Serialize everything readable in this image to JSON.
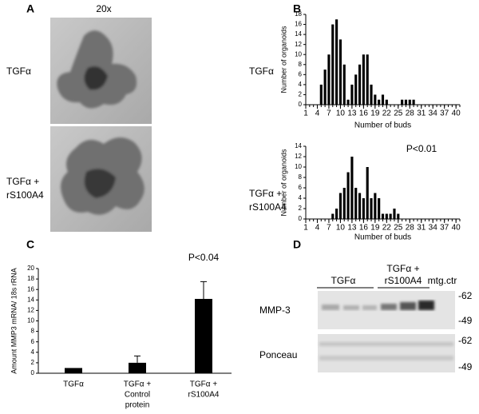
{
  "panels": {
    "a": {
      "label": "A",
      "magnification": "20x",
      "rows": [
        [
          "TGFα"
        ],
        [
          "TGFα +",
          "rS100A4"
        ]
      ]
    },
    "b": {
      "label": "B",
      "rows": [
        [
          "TGFα"
        ],
        [
          "TGFα +",
          "rS100A4"
        ]
      ]
    },
    "c": {
      "label": "C"
    },
    "d": {
      "label": "D",
      "groups": [
        [
          "TGFα"
        ],
        [
          "TGFα +",
          "rS100A4"
        ],
        [
          "mtg.ctr"
        ]
      ],
      "blots": [
        {
          "name": "MMP-3",
          "markers": [
            "-62",
            "-49"
          ]
        },
        {
          "name": "Ponceau",
          "markers": [
            "-62",
            "-49"
          ]
        }
      ]
    }
  },
  "chart_data": [
    {
      "type": "bar",
      "x_label": "Number of buds",
      "y_label": "Number of organoids",
      "x": [
        5,
        6,
        7,
        8,
        9,
        10,
        11,
        12,
        13,
        14,
        15,
        16,
        17,
        18,
        19,
        20,
        21,
        22,
        26,
        27,
        28,
        29
      ],
      "values": [
        4,
        7,
        10,
        16,
        17,
        13,
        8,
        1,
        4,
        6,
        8,
        10,
        10,
        4,
        2,
        1,
        2,
        1,
        1,
        1,
        1,
        1
      ],
      "color": "#000000",
      "xlim": [
        1,
        41
      ],
      "ylim": [
        0,
        18
      ],
      "xticks": [
        1,
        4,
        7,
        10,
        13,
        16,
        19,
        22,
        25,
        28,
        31,
        34,
        37,
        40
      ],
      "xticks_minor": [
        1,
        2,
        3,
        4,
        5,
        6,
        7,
        8,
        9,
        10,
        11,
        12,
        13,
        14,
        15,
        16,
        17,
        18,
        19,
        20,
        21,
        22,
        23,
        24,
        25,
        26,
        27,
        28,
        29,
        30,
        31,
        32,
        33,
        34,
        35,
        36,
        37,
        38,
        39,
        40,
        41
      ],
      "yticks": [
        0,
        2,
        4,
        6,
        8,
        10,
        12,
        14,
        16,
        18
      ]
    },
    {
      "type": "bar",
      "x_label": "Number of buds",
      "y_label": "Number of organoids",
      "annotation": "P<0.01",
      "x": [
        8,
        9,
        10,
        11,
        12,
        13,
        14,
        15,
        16,
        17,
        18,
        19,
        20,
        21,
        22,
        23,
        24,
        25
      ],
      "values": [
        1,
        2,
        5,
        6,
        9,
        12,
        6,
        5,
        4,
        10,
        4,
        5,
        4,
        1,
        1,
        1,
        2,
        1
      ],
      "color": "#000000",
      "xlim": [
        1,
        41
      ],
      "ylim": [
        0,
        14
      ],
      "xticks": [
        1,
        4,
        7,
        10,
        13,
        16,
        19,
        22,
        25,
        28,
        31,
        34,
        37,
        40
      ],
      "xticks_minor": [
        1,
        2,
        3,
        4,
        5,
        6,
        7,
        8,
        9,
        10,
        11,
        12,
        13,
        14,
        15,
        16,
        17,
        18,
        19,
        20,
        21,
        22,
        23,
        24,
        25,
        26,
        27,
        28,
        29,
        30,
        31,
        32,
        33,
        34,
        35,
        36,
        37,
        38,
        39,
        40,
        41
      ],
      "yticks": [
        0,
        2,
        4,
        6,
        8,
        10,
        12,
        14
      ]
    },
    {
      "type": "bar",
      "y_label": "Amount MMP3 mRNA/ 18s rRNA",
      "annotation": "P<0.04",
      "categories": [
        [
          "TGFα"
        ],
        [
          "TGFα +",
          "Control",
          "protein"
        ],
        [
          "TGFα +",
          "rS100A4"
        ]
      ],
      "values": [
        1,
        2,
        14.2
      ],
      "errors": [
        null,
        1.3,
        3.3
      ],
      "color": "#000000",
      "ylim": [
        0,
        20
      ],
      "yticks": [
        0,
        2,
        4,
        6,
        8,
        10,
        12,
        14,
        16,
        18,
        20
      ]
    }
  ]
}
